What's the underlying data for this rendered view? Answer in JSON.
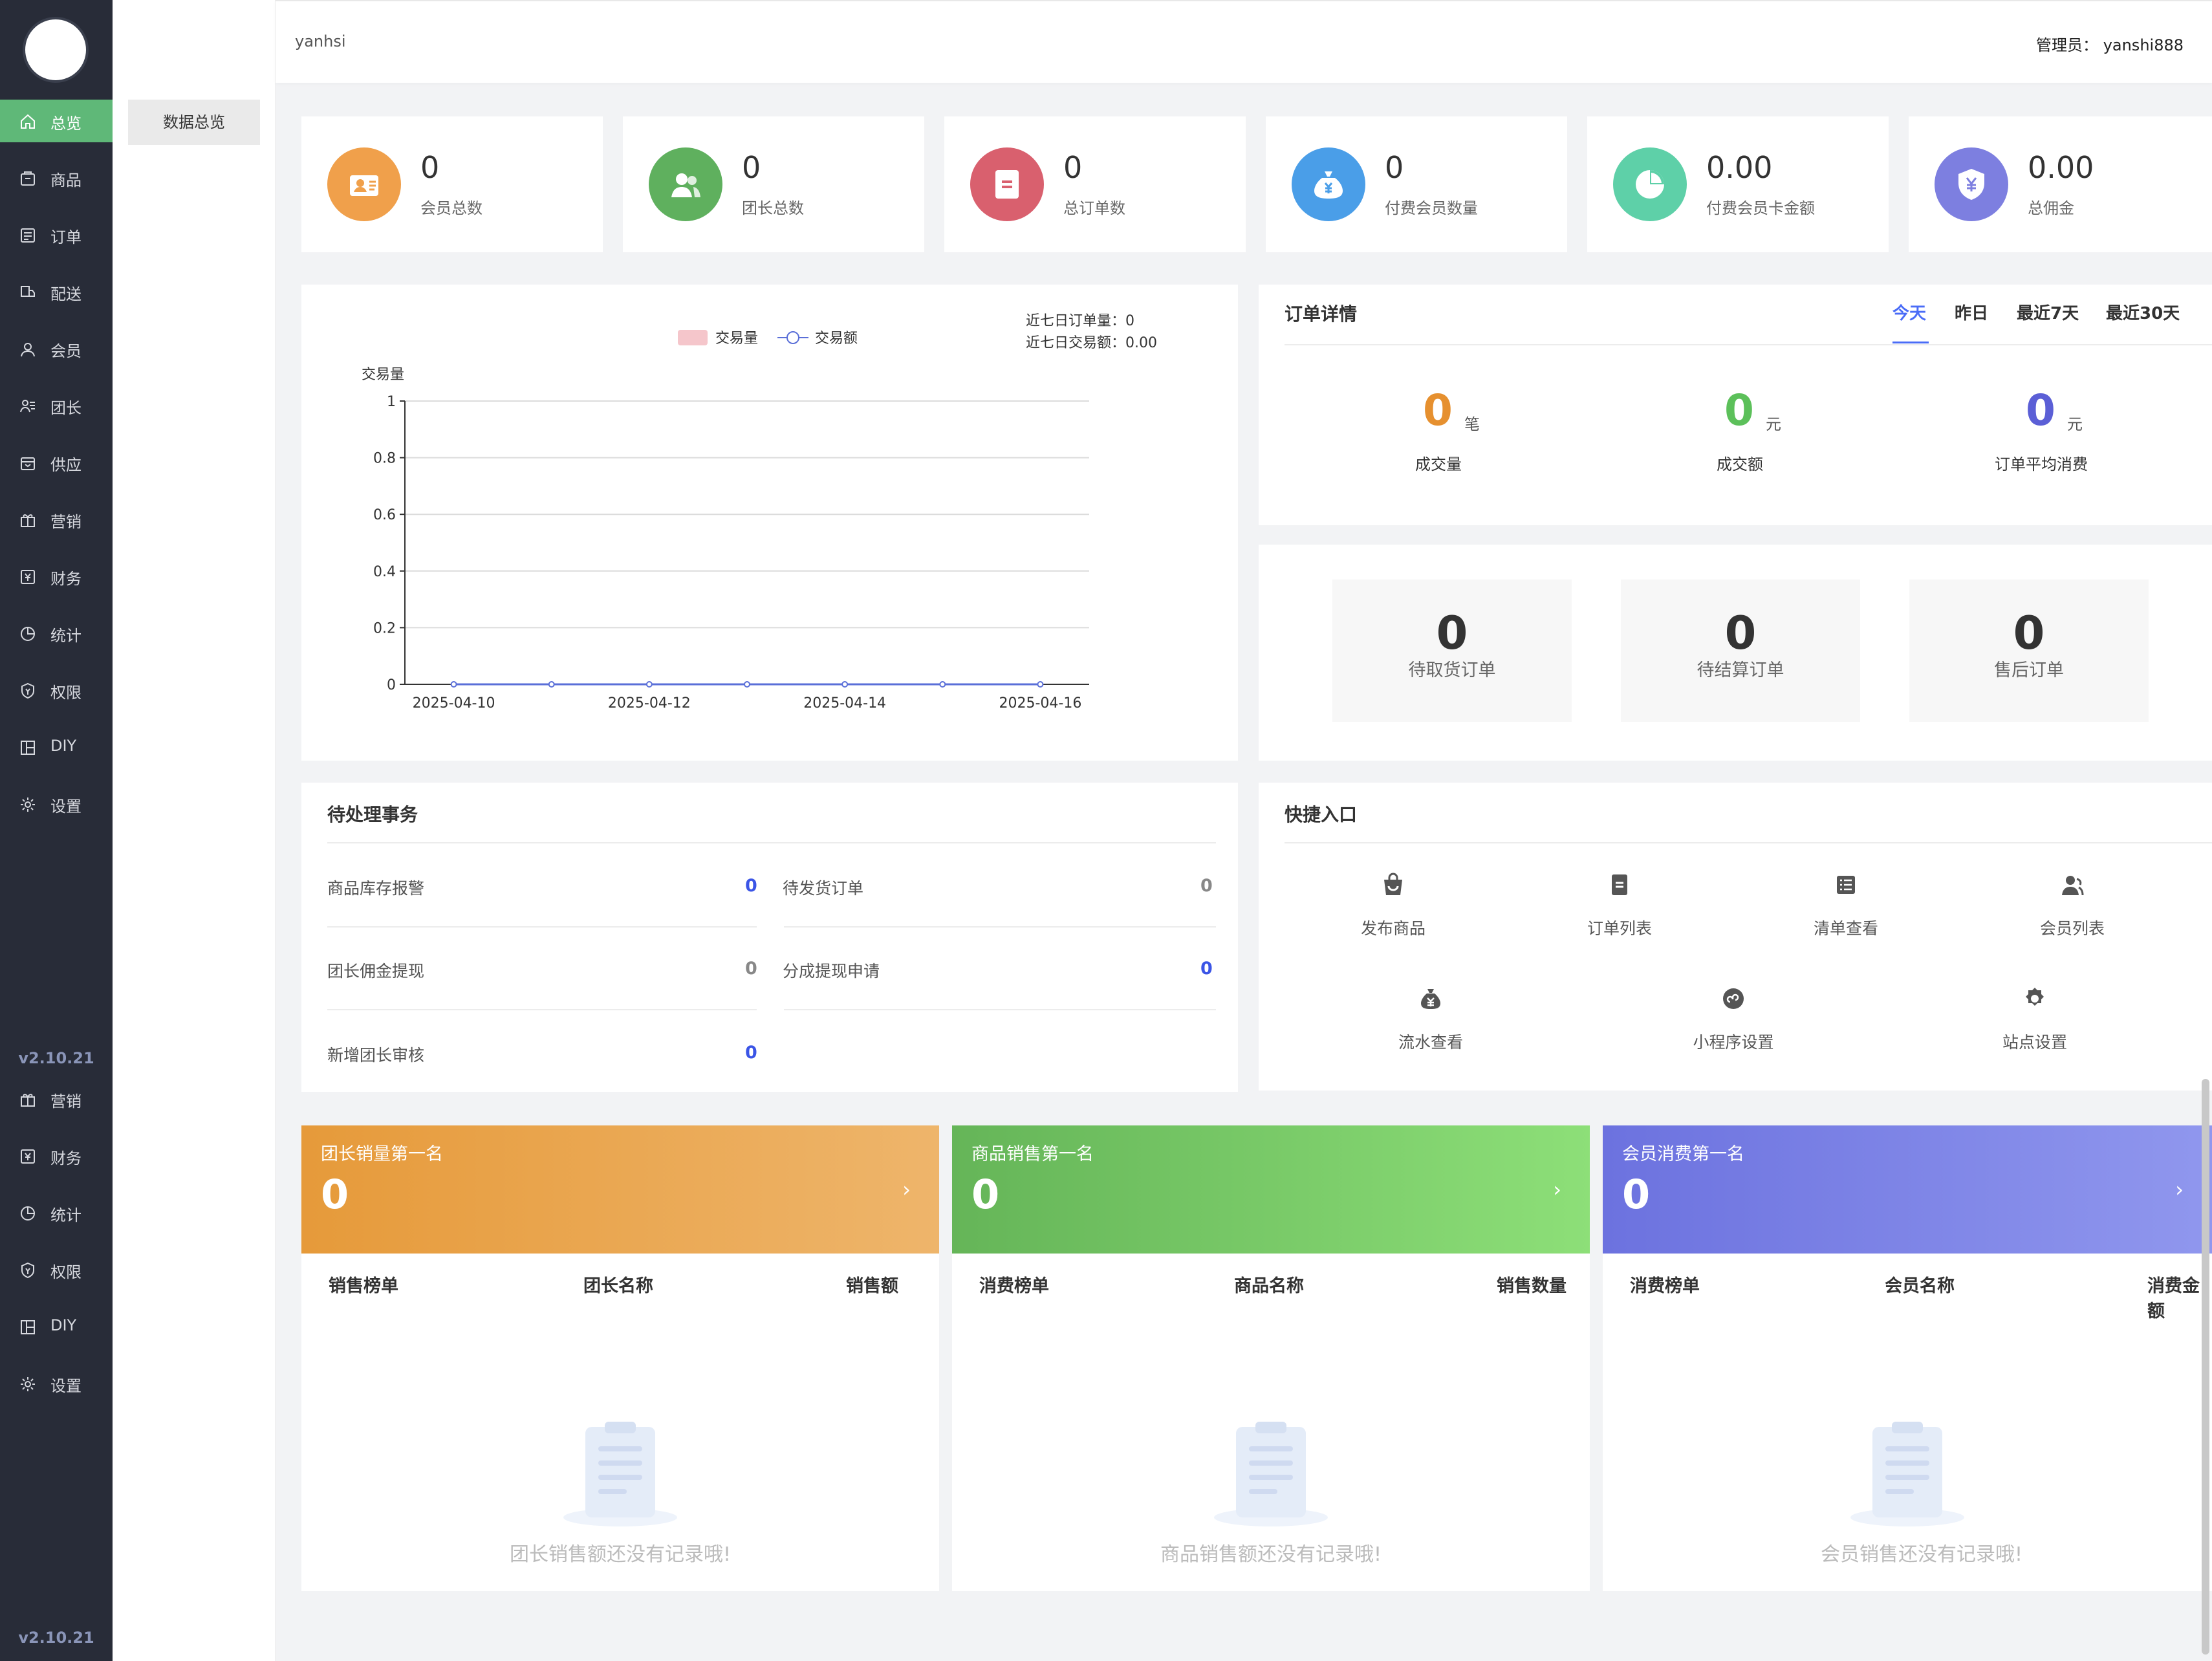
{
  "brand": {
    "site_name": "yanhsi",
    "admin_label": "管理员：",
    "admin_name": "yanshi888"
  },
  "sidebar": {
    "items": [
      {
        "label": "总览",
        "icon": "home-icon",
        "active": true
      },
      {
        "label": "商品",
        "icon": "goods-icon"
      },
      {
        "label": "订单",
        "icon": "order-icon"
      },
      {
        "label": "配送",
        "icon": "delivery-icon"
      },
      {
        "label": "会员",
        "icon": "member-icon"
      },
      {
        "label": "团长",
        "icon": "leader-icon"
      },
      {
        "label": "供应",
        "icon": "supply-icon"
      },
      {
        "label": "营销",
        "icon": "gift-icon"
      },
      {
        "label": "财务",
        "icon": "finance-icon"
      },
      {
        "label": "统计",
        "icon": "pie-icon"
      },
      {
        "label": "权限",
        "icon": "shield-icon"
      },
      {
        "label": "DIY",
        "icon": "layout-icon"
      },
      {
        "label": "设置",
        "icon": "gear-icon"
      }
    ],
    "version": "v2.10.21",
    "repeat_items": [
      {
        "label": "营销",
        "icon": "gift-icon"
      },
      {
        "label": "财务",
        "icon": "finance-icon"
      },
      {
        "label": "统计",
        "icon": "pie-icon"
      },
      {
        "label": "权限",
        "icon": "shield-icon"
      },
      {
        "label": "DIY",
        "icon": "layout-icon"
      },
      {
        "label": "设置",
        "icon": "gear-icon"
      }
    ],
    "version_bottom": "v2.10.21"
  },
  "submenu": {
    "overview": "数据总览"
  },
  "stats": [
    {
      "value": "0",
      "label": "会员总数",
      "color": "#f0a04b",
      "icon": "member-card-icon"
    },
    {
      "value": "0",
      "label": "团长总数",
      "color": "#5fb05e",
      "icon": "team-icon"
    },
    {
      "value": "0",
      "label": "总订单数",
      "color": "#d9606e",
      "icon": "doc-icon"
    },
    {
      "value": "0",
      "label": "付费会员数量",
      "color": "#4a9ee8",
      "icon": "moneybag-icon"
    },
    {
      "value": "0.00",
      "label": "付费会员卡金额",
      "color": "#5ed0a8",
      "icon": "pie-chart-icon"
    },
    {
      "value": "0.00",
      "label": "总佣金",
      "color": "#7d7fe0",
      "icon": "yuan-shield-icon"
    }
  ],
  "chart_summary": {
    "orders_label": "近七日订单量：",
    "orders_value": "0",
    "amount_label": "近七日交易额：",
    "amount_value": "0.00"
  },
  "chart_data": {
    "type": "bar",
    "ylabel": "交易量",
    "ylim": [
      0,
      1
    ],
    "yticks": [
      "0",
      "0.2",
      "0.4",
      "0.6",
      "0.8",
      "1"
    ],
    "x": [
      "2025-04-10",
      "2025-04-11",
      "2025-04-12",
      "2025-04-13",
      "2025-04-14",
      "2025-04-15",
      "2025-04-16"
    ],
    "xtick_labels": [
      "2025-04-10",
      "2025-04-12",
      "2025-04-14",
      "2025-04-16"
    ],
    "grid": true,
    "legend_position": "top",
    "series": [
      {
        "name": "交易量",
        "type": "bar",
        "color": "#f5c6cb",
        "values": [
          0,
          0,
          0,
          0,
          0,
          0,
          0
        ]
      },
      {
        "name": "交易额",
        "type": "line",
        "color": "#5a6fd8",
        "values": [
          0,
          0,
          0,
          0,
          0,
          0,
          0
        ]
      }
    ]
  },
  "order_detail": {
    "title": "订单详情",
    "tabs": [
      "今天",
      "昨日",
      "最近7天",
      "最近30天"
    ],
    "metrics": [
      {
        "value": "0",
        "unit": "笔",
        "label": "成交量",
        "color": "#e6902f"
      },
      {
        "value": "0",
        "unit": "元",
        "label": "成交额",
        "color": "#5cc05a"
      },
      {
        "value": "0",
        "unit": "元",
        "label": "订单平均消费",
        "color": "#5b5fd6"
      }
    ]
  },
  "pending_orders": [
    {
      "value": "0",
      "label": "待取货订单"
    },
    {
      "value": "0",
      "label": "待结算订单"
    },
    {
      "value": "0",
      "label": "售后订单"
    }
  ],
  "tasks": {
    "title": "待处理事务",
    "items": [
      {
        "label": "商品库存报警",
        "value": "0",
        "highlight": true
      },
      {
        "label": "待发货订单",
        "value": "0",
        "highlight": false
      },
      {
        "label": "团长佣金提现",
        "value": "0",
        "highlight": false
      },
      {
        "label": "分成提现申请",
        "value": "0",
        "highlight": true
      },
      {
        "label": "新增团长审核",
        "value": "0",
        "highlight": true
      }
    ]
  },
  "quick": {
    "title": "快捷入口",
    "items": [
      {
        "label": "发布商品",
        "icon": "bag-icon"
      },
      {
        "label": "订单列表",
        "icon": "order-doc-icon"
      },
      {
        "label": "清单查看",
        "icon": "list-icon"
      },
      {
        "label": "会员列表",
        "icon": "user-icon"
      },
      {
        "label": "流水查看",
        "icon": "money-icon"
      },
      {
        "label": "小程序设置",
        "icon": "miniapp-icon"
      },
      {
        "label": "站点设置",
        "icon": "settings-icon"
      }
    ]
  },
  "rankings": [
    {
      "title": "团长销量第一名",
      "value": "0",
      "cols": [
        "销售榜单",
        "团长名称",
        "销售额"
      ],
      "empty": "团长销售额还没有记录哦!",
      "color_a": "#e69a3a",
      "color_b": "#eeb56b"
    },
    {
      "title": "商品销售第一名",
      "value": "0",
      "cols": [
        "消费榜单",
        "商品名称",
        "销售数量"
      ],
      "empty": "商品销售额还没有记录哦!",
      "color_a": "#65b558",
      "color_b": "#8ddf78"
    },
    {
      "title": "会员消费第一名",
      "value": "0",
      "cols": [
        "消费榜单",
        "会员名称",
        "消费金额"
      ],
      "empty": "会员销售还没有记录哦!",
      "color_a": "#6c72df",
      "color_b": "#9097ee"
    }
  ]
}
